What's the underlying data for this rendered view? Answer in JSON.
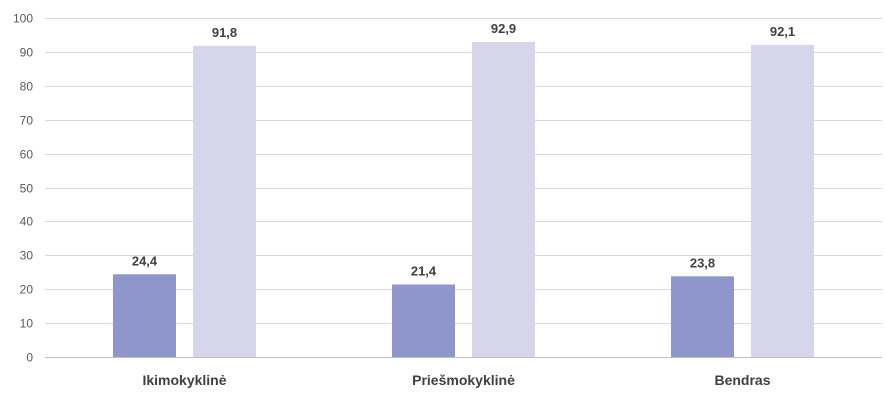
{
  "chart_data": {
    "type": "bar",
    "title": "",
    "xlabel": "",
    "ylabel": "",
    "categories": [
      "Ikimokyklinė",
      "Priešmokyklinė",
      "Bendras"
    ],
    "series": [
      {
        "values": [
          24.4,
          21.4,
          23.8
        ],
        "labels": [
          "24,4",
          "21,4",
          "23,8"
        ],
        "color": "#8f96cc"
      },
      {
        "values": [
          91.8,
          92.9,
          92.1
        ],
        "labels": [
          "91,8",
          "92,9",
          "92,1"
        ],
        "color": "#d5d6ea"
      }
    ],
    "ylim": [
      0,
      100
    ],
    "yticks": [
      0,
      10,
      20,
      30,
      40,
      50,
      60,
      70,
      80,
      90,
      100
    ],
    "grid": true,
    "legend": "none"
  }
}
